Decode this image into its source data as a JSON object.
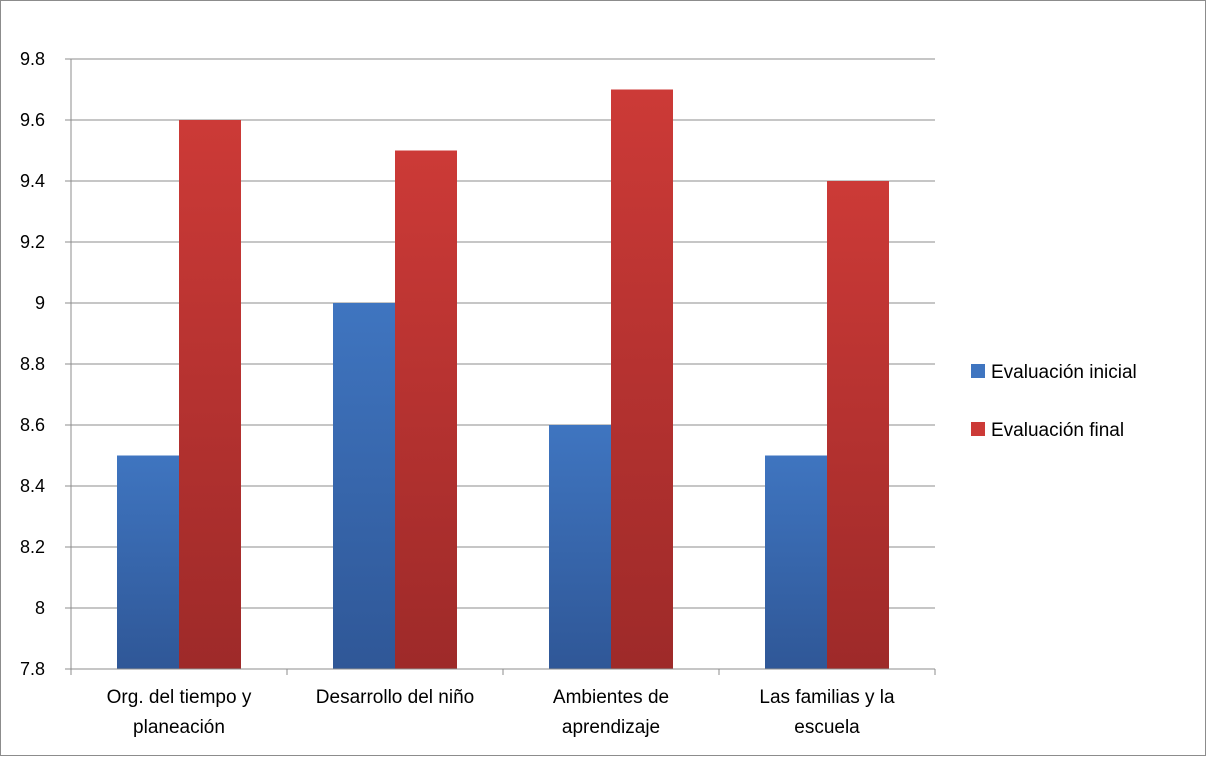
{
  "chart_data": {
    "type": "bar",
    "categories": [
      [
        "Org. del tiempo y",
        "planeación"
      ],
      [
        "Desarrollo del niño"
      ],
      [
        "Ambientes de",
        "aprendizaje"
      ],
      [
        "Las familias y la",
        "escuela"
      ]
    ],
    "series": [
      {
        "name": "Evaluación inicial",
        "color": "#3f75c0",
        "color_dark": "#2f5797",
        "values": [
          8.5,
          9.0,
          8.6,
          8.5
        ]
      },
      {
        "name": "Evaluación final",
        "color": "#cc3a37",
        "color_dark": "#9e2a29",
        "values": [
          9.6,
          9.5,
          9.7,
          9.4
        ]
      }
    ],
    "ylim": [
      7.8,
      9.8
    ],
    "yticks": [
      "7.8",
      "8",
      "8.2",
      "8.4",
      "8.6",
      "8.8",
      "9",
      "9.2",
      "9.4",
      "9.6",
      "9.8"
    ],
    "grid": true,
    "legend_position": "right",
    "xlabel": "",
    "ylabel": "",
    "title": ""
  }
}
